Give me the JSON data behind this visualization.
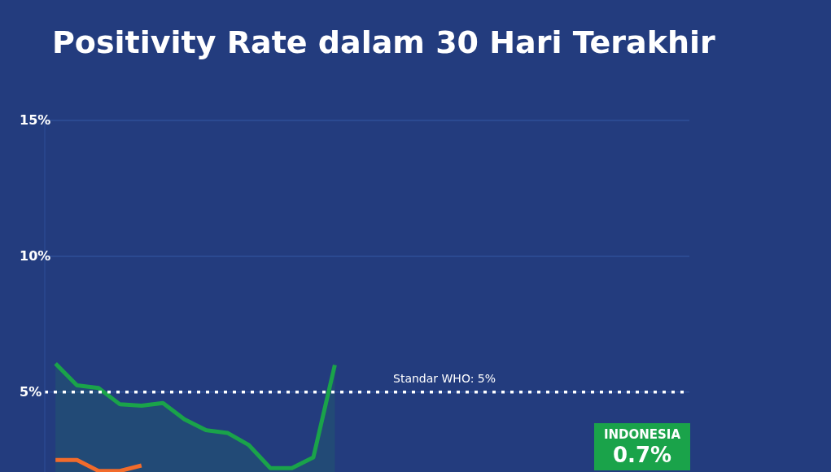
{
  "chart_data": {
    "type": "line",
    "title": "Positivity Rate dalam 30 Hari Terakhir",
    "categories": [
      null,
      null,
      null,
      null,
      null,
      null,
      null,
      null,
      null,
      null,
      null,
      null,
      null,
      null,
      null,
      null,
      null,
      null,
      null,
      null,
      null,
      null,
      null,
      null,
      null,
      null,
      null,
      null,
      null,
      null
    ],
    "series": [
      {
        "type": "area",
        "color": "#1aa34a",
        "values": [
          6.05,
          5.25,
          5.15,
          4.55,
          4.5,
          4.6,
          4.0,
          3.6,
          3.5,
          3.05,
          2.2,
          2.2,
          2.6,
          6.0,
          null,
          null,
          null,
          null,
          null,
          null,
          null,
          null,
          null,
          null,
          null,
          null,
          null,
          null,
          null,
          null
        ]
      },
      {
        "color": "#f26b2b",
        "values": [
          2.5,
          2.5,
          2.1,
          2.1,
          2.3,
          null,
          null,
          null,
          null,
          null,
          null,
          null,
          null,
          null,
          null,
          null,
          null,
          null,
          null,
          null,
          null,
          null,
          null,
          null,
          null,
          null,
          null,
          null,
          null,
          null
        ]
      }
    ],
    "ylim": [
      2,
      15
    ],
    "yticks": [
      {
        "value": 5,
        "label": "5%"
      },
      {
        "value": 10,
        "label": "10%"
      },
      {
        "value": 15,
        "label": "15%"
      }
    ],
    "grid": "y",
    "marker": "none",
    "line_style": "solid",
    "ref_lines": [
      {
        "axis": "y",
        "value": 5,
        "label": "Standar WHO: 5%",
        "color": "#ffffff",
        "line_style": "dotted"
      }
    ],
    "annotations": [
      "INDONESIA",
      "0.7%"
    ]
  }
}
